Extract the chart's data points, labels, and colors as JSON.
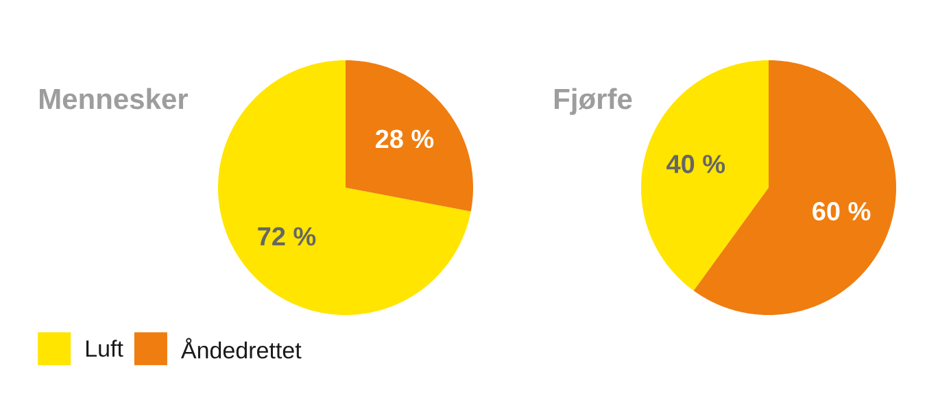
{
  "chart_data": [
    {
      "type": "pie",
      "title": "Mennesker",
      "categories": [
        "Luft",
        "Åndedrettet"
      ],
      "values": [
        72,
        28
      ],
      "colors": [
        "#ffe500",
        "#f07d0f"
      ],
      "value_labels": [
        "72 %",
        "28 %"
      ],
      "legend": "bottom"
    },
    {
      "type": "pie",
      "title": "Fjørfe",
      "categories": [
        null,
        null
      ],
      "values": [
        40,
        60
      ],
      "colors": [
        "#ffe500",
        "#f07d0f"
      ],
      "value_labels": [
        "40 %",
        "60 %"
      ]
    }
  ]
}
